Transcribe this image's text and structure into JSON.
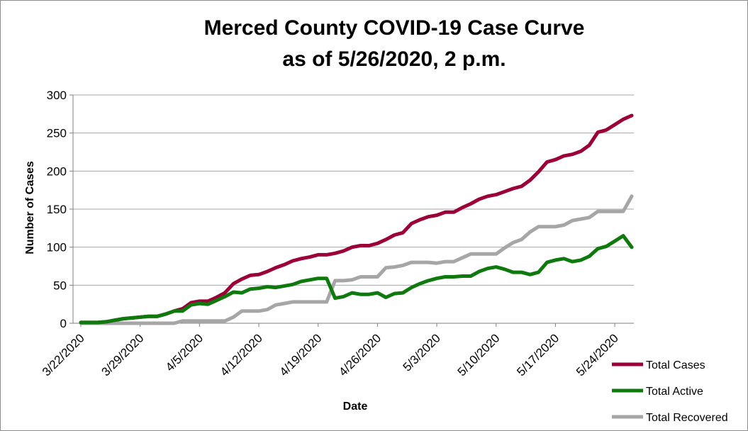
{
  "chart_data": {
    "type": "line",
    "title_line1": "Merced County COVID-19 Case Curve",
    "title_line2": "as of 5/26/2020, 2 p.m.",
    "xlabel": "Date",
    "ylabel": "Number of Cases",
    "ylim": [
      0,
      300
    ],
    "yticks": [
      0,
      50,
      100,
      150,
      200,
      250,
      300
    ],
    "grid": "horizontal",
    "legend_position": "right",
    "x_start": "3/22/2020",
    "x_end": "5/26/2020",
    "x_tick_labels": [
      "3/22/2020",
      "3/29/2020",
      "4/5/2020",
      "4/12/2020",
      "4/19/2020",
      "4/26/2020",
      "5/3/2020",
      "5/10/2020",
      "5/17/2020",
      "5/24/2020"
    ],
    "series": [
      {
        "name": "Total Cases",
        "color": "#9b0038",
        "points": [
          [
            "3/22/2020",
            1
          ],
          [
            "3/23/2020",
            1
          ],
          [
            "3/24/2020",
            1
          ],
          [
            "3/25/2020",
            2
          ],
          [
            "3/26/2020",
            4
          ],
          [
            "3/27/2020",
            6
          ],
          [
            "3/28/2020",
            7
          ],
          [
            "3/29/2020",
            8
          ],
          [
            "3/30/2020",
            9
          ],
          [
            "3/31/2020",
            9
          ],
          [
            "4/1/2020",
            12
          ],
          [
            "4/2/2020",
            16
          ],
          [
            "4/3/2020",
            19
          ],
          [
            "4/4/2020",
            27
          ],
          [
            "4/5/2020",
            29
          ],
          [
            "4/6/2020",
            29
          ],
          [
            "4/7/2020",
            34
          ],
          [
            "4/8/2020",
            40
          ],
          [
            "4/9/2020",
            52
          ],
          [
            "4/10/2020",
            58
          ],
          [
            "4/11/2020",
            63
          ],
          [
            "4/12/2020",
            64
          ],
          [
            "4/13/2020",
            68
          ],
          [
            "4/14/2020",
            73
          ],
          [
            "4/15/2020",
            77
          ],
          [
            "4/16/2020",
            82
          ],
          [
            "4/17/2020",
            85
          ],
          [
            "4/18/2020",
            87
          ],
          [
            "4/19/2020",
            90
          ],
          [
            "4/20/2020",
            90
          ],
          [
            "4/21/2020",
            92
          ],
          [
            "4/22/2020",
            95
          ],
          [
            "4/23/2020",
            100
          ],
          [
            "4/24/2020",
            102
          ],
          [
            "4/25/2020",
            102
          ],
          [
            "4/26/2020",
            105
          ],
          [
            "4/27/2020",
            110
          ],
          [
            "4/28/2020",
            116
          ],
          [
            "4/29/2020",
            119
          ],
          [
            "4/30/2020",
            131
          ],
          [
            "5/1/2020",
            136
          ],
          [
            "5/2/2020",
            140
          ],
          [
            "5/3/2020",
            142
          ],
          [
            "5/4/2020",
            146
          ],
          [
            "5/5/2020",
            146
          ],
          [
            "5/6/2020",
            152
          ],
          [
            "5/7/2020",
            157
          ],
          [
            "5/8/2020",
            163
          ],
          [
            "5/9/2020",
            167
          ],
          [
            "5/10/2020",
            169
          ],
          [
            "5/11/2020",
            173
          ],
          [
            "5/12/2020",
            177
          ],
          [
            "5/13/2020",
            180
          ],
          [
            "5/14/2020",
            188
          ],
          [
            "5/15/2020",
            199
          ],
          [
            "5/16/2020",
            212
          ],
          [
            "5/17/2020",
            215
          ],
          [
            "5/18/2020",
            220
          ],
          [
            "5/19/2020",
            222
          ],
          [
            "5/20/2020",
            226
          ],
          [
            "5/21/2020",
            234
          ],
          [
            "5/22/2020",
            251
          ],
          [
            "5/23/2020",
            254
          ],
          [
            "5/24/2020",
            261
          ],
          [
            "5/25/2020",
            268
          ],
          [
            "5/26/2020",
            273
          ]
        ]
      },
      {
        "name": "Total Active",
        "color": "#0e7a0e",
        "points": [
          [
            "3/22/2020",
            1
          ],
          [
            "3/23/2020",
            1
          ],
          [
            "3/24/2020",
            1
          ],
          [
            "3/25/2020",
            2
          ],
          [
            "3/26/2020",
            4
          ],
          [
            "3/27/2020",
            6
          ],
          [
            "3/28/2020",
            7
          ],
          [
            "3/29/2020",
            8
          ],
          [
            "3/30/2020",
            9
          ],
          [
            "3/31/2020",
            9
          ],
          [
            "4/1/2020",
            12
          ],
          [
            "4/2/2020",
            16
          ],
          [
            "4/3/2020",
            16
          ],
          [
            "4/4/2020",
            24
          ],
          [
            "4/5/2020",
            26
          ],
          [
            "4/6/2020",
            25
          ],
          [
            "4/7/2020",
            30
          ],
          [
            "4/8/2020",
            35
          ],
          [
            "4/9/2020",
            41
          ],
          [
            "4/10/2020",
            40
          ],
          [
            "4/11/2020",
            45
          ],
          [
            "4/12/2020",
            46
          ],
          [
            "4/13/2020",
            48
          ],
          [
            "4/14/2020",
            47
          ],
          [
            "4/15/2020",
            49
          ],
          [
            "4/16/2020",
            51
          ],
          [
            "4/17/2020",
            55
          ],
          [
            "4/18/2020",
            57
          ],
          [
            "4/19/2020",
            59
          ],
          [
            "4/20/2020",
            59
          ],
          [
            "4/21/2020",
            33
          ],
          [
            "4/22/2020",
            35
          ],
          [
            "4/23/2020",
            40
          ],
          [
            "4/24/2020",
            38
          ],
          [
            "4/25/2020",
            38
          ],
          [
            "4/26/2020",
            40
          ],
          [
            "4/27/2020",
            34
          ],
          [
            "4/28/2020",
            39
          ],
          [
            "4/29/2020",
            40
          ],
          [
            "4/30/2020",
            47
          ],
          [
            "5/1/2020",
            52
          ],
          [
            "5/2/2020",
            56
          ],
          [
            "5/3/2020",
            59
          ],
          [
            "5/4/2020",
            61
          ],
          [
            "5/5/2020",
            61
          ],
          [
            "5/6/2020",
            62
          ],
          [
            "5/7/2020",
            62
          ],
          [
            "5/8/2020",
            68
          ],
          [
            "5/9/2020",
            72
          ],
          [
            "5/10/2020",
            74
          ],
          [
            "5/11/2020",
            71
          ],
          [
            "5/12/2020",
            67
          ],
          [
            "5/13/2020",
            67
          ],
          [
            "5/14/2020",
            64
          ],
          [
            "5/15/2020",
            67
          ],
          [
            "5/16/2020",
            80
          ],
          [
            "5/17/2020",
            83
          ],
          [
            "5/18/2020",
            85
          ],
          [
            "5/19/2020",
            81
          ],
          [
            "5/20/2020",
            83
          ],
          [
            "5/21/2020",
            88
          ],
          [
            "5/22/2020",
            98
          ],
          [
            "5/23/2020",
            101
          ],
          [
            "5/24/2020",
            108
          ],
          [
            "5/25/2020",
            115
          ],
          [
            "5/26/2020",
            100
          ]
        ]
      },
      {
        "name": "Total Recovered",
        "color": "#a6a6a6",
        "points": [
          [
            "3/22/2020",
            0
          ],
          [
            "3/23/2020",
            0
          ],
          [
            "3/24/2020",
            0
          ],
          [
            "3/25/2020",
            0
          ],
          [
            "3/26/2020",
            0
          ],
          [
            "3/27/2020",
            0
          ],
          [
            "3/28/2020",
            0
          ],
          [
            "3/29/2020",
            0
          ],
          [
            "3/30/2020",
            0
          ],
          [
            "3/31/2020",
            0
          ],
          [
            "4/1/2020",
            0
          ],
          [
            "4/2/2020",
            0
          ],
          [
            "4/3/2020",
            3
          ],
          [
            "4/4/2020",
            3
          ],
          [
            "4/5/2020",
            3
          ],
          [
            "4/6/2020",
            3
          ],
          [
            "4/7/2020",
            3
          ],
          [
            "4/8/2020",
            3
          ],
          [
            "4/9/2020",
            8
          ],
          [
            "4/10/2020",
            16
          ],
          [
            "4/11/2020",
            16
          ],
          [
            "4/12/2020",
            16
          ],
          [
            "4/13/2020",
            18
          ],
          [
            "4/14/2020",
            24
          ],
          [
            "4/15/2020",
            26
          ],
          [
            "4/16/2020",
            28
          ],
          [
            "4/17/2020",
            28
          ],
          [
            "4/18/2020",
            28
          ],
          [
            "4/19/2020",
            28
          ],
          [
            "4/20/2020",
            28
          ],
          [
            "4/21/2020",
            56
          ],
          [
            "4/22/2020",
            56
          ],
          [
            "4/23/2020",
            57
          ],
          [
            "4/24/2020",
            61
          ],
          [
            "4/25/2020",
            61
          ],
          [
            "4/26/2020",
            61
          ],
          [
            "4/27/2020",
            73
          ],
          [
            "4/28/2020",
            74
          ],
          [
            "4/29/2020",
            76
          ],
          [
            "4/30/2020",
            80
          ],
          [
            "5/1/2020",
            80
          ],
          [
            "5/2/2020",
            80
          ],
          [
            "5/3/2020",
            79
          ],
          [
            "5/4/2020",
            81
          ],
          [
            "5/5/2020",
            81
          ],
          [
            "5/6/2020",
            86
          ],
          [
            "5/7/2020",
            91
          ],
          [
            "5/8/2020",
            91
          ],
          [
            "5/9/2020",
            91
          ],
          [
            "5/10/2020",
            91
          ],
          [
            "5/11/2020",
            99
          ],
          [
            "5/12/2020",
            106
          ],
          [
            "5/13/2020",
            110
          ],
          [
            "5/14/2020",
            120
          ],
          [
            "5/15/2020",
            127
          ],
          [
            "5/16/2020",
            127
          ],
          [
            "5/17/2020",
            127
          ],
          [
            "5/18/2020",
            129
          ],
          [
            "5/19/2020",
            135
          ],
          [
            "5/20/2020",
            137
          ],
          [
            "5/21/2020",
            139
          ],
          [
            "5/22/2020",
            147
          ],
          [
            "5/23/2020",
            147
          ],
          [
            "5/24/2020",
            147
          ],
          [
            "5/25/2020",
            147
          ],
          [
            "5/26/2020",
            167
          ]
        ]
      }
    ]
  }
}
